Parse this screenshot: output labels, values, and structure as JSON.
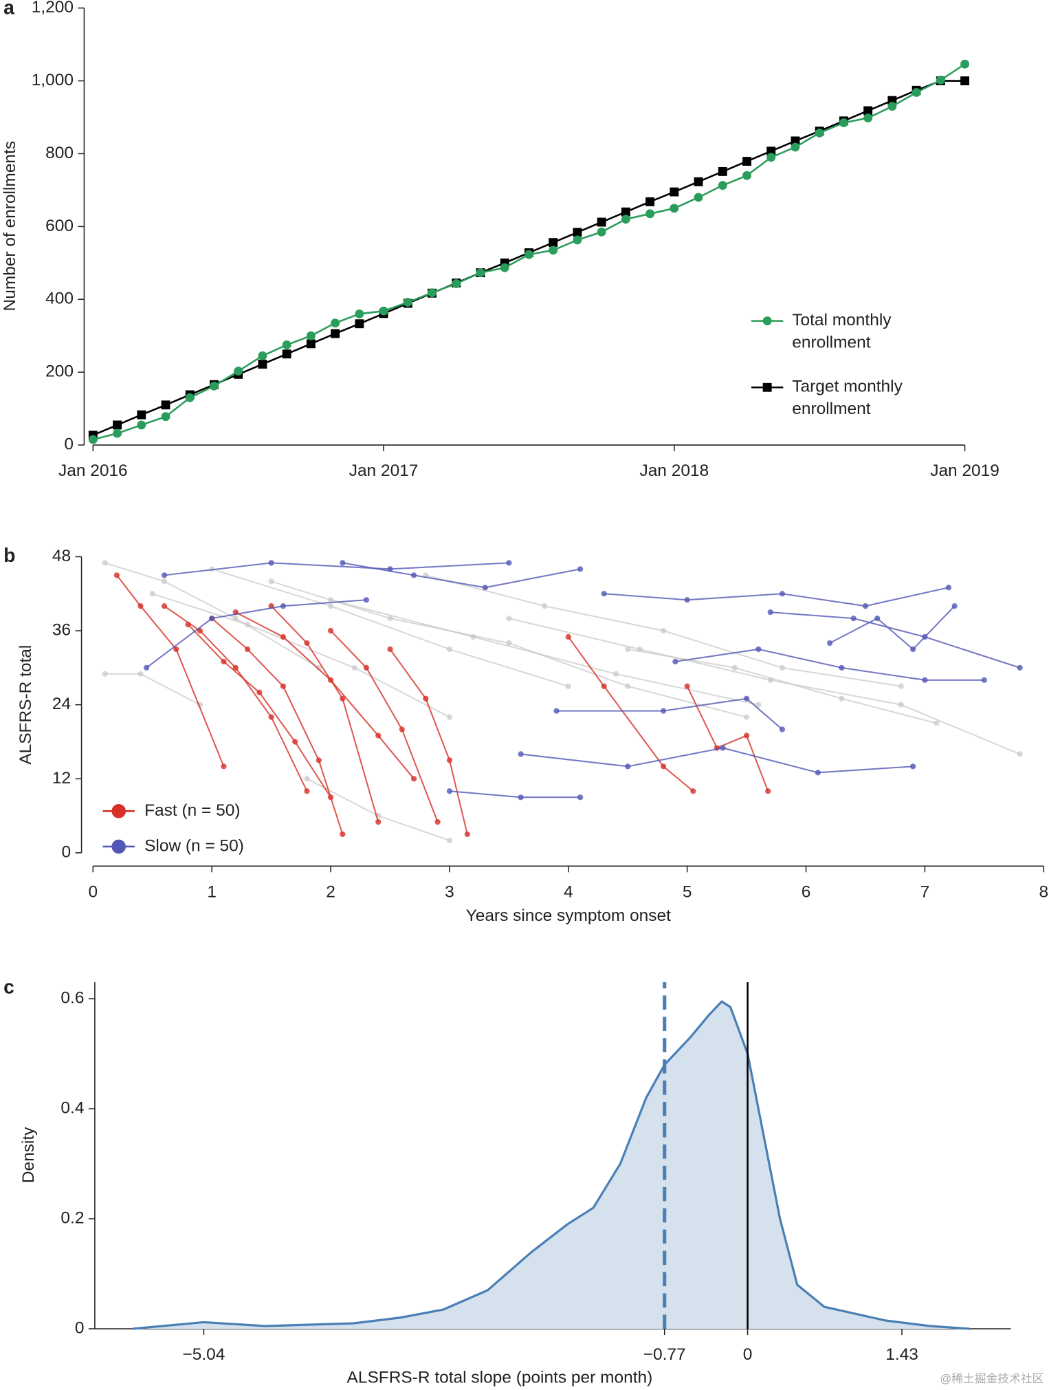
{
  "chart_data": [
    {
      "type": "line",
      "label": "a",
      "ylabel": "Number of enrollments",
      "legend": "lower right",
      "x": [
        "2016-01",
        "2016-02",
        "2016-03",
        "2016-04",
        "2016-05",
        "2016-06",
        "2016-07",
        "2016-08",
        "2016-09",
        "2016-10",
        "2016-11",
        "2016-12",
        "2017-01",
        "2017-02",
        "2017-03",
        "2017-04",
        "2017-05",
        "2017-06",
        "2017-07",
        "2017-08",
        "2017-09",
        "2017-10",
        "2017-11",
        "2017-12",
        "2018-01",
        "2018-02",
        "2018-03",
        "2018-04",
        "2018-05",
        "2018-06",
        "2018-07",
        "2018-08",
        "2018-09",
        "2018-10",
        "2018-11",
        "2018-12",
        "2019-01"
      ],
      "xlim": [
        "2016-01",
        "2019-01"
      ],
      "xticks": [
        {
          "value": "2016-01",
          "label": "Jan 2016"
        },
        {
          "value": "2017-01",
          "label": "Jan 2017"
        },
        {
          "value": "2018-01",
          "label": "Jan 2018"
        },
        {
          "value": "2019-01",
          "label": "Jan 2019"
        }
      ],
      "ylim": [
        0,
        1200
      ],
      "yticks": [
        0,
        200,
        400,
        600,
        800,
        {
          "value": 1000,
          "label": "1,000"
        },
        {
          "value": 1200,
          "label": "1,200"
        }
      ],
      "series": [
        {
          "name": "Total monthly enrollment",
          "color": "#2a9d5c",
          "marker": "circle",
          "values": [
            15,
            32,
            55,
            78,
            130,
            162,
            203,
            245,
            275,
            300,
            335,
            360,
            368,
            392,
            418,
            443,
            473,
            487,
            523,
            535,
            563,
            585,
            620,
            635,
            650,
            680,
            713,
            740,
            790,
            818,
            857,
            885,
            898,
            930,
            968,
            1002,
            1046
          ]
        },
        {
          "name": "Target monthly enrollment",
          "color": "#000000",
          "marker": "square",
          "values": [
            27,
            55,
            83,
            110,
            138,
            166,
            194,
            222,
            250,
            278,
            306,
            333,
            361,
            389,
            417,
            445,
            473,
            500,
            528,
            556,
            584,
            612,
            640,
            668,
            695,
            723,
            751,
            779,
            807,
            835,
            862,
            890,
            918,
            946,
            974,
            1000,
            1000
          ]
        }
      ]
    },
    {
      "type": "line",
      "label": "b",
      "ylabel": "ALSFRS-R total",
      "xlabel": "Years since symptom onset",
      "legend": "lower left",
      "xlim": [
        0,
        8
      ],
      "xticks": [
        0,
        1,
        2,
        3,
        4,
        5,
        6,
        7,
        8
      ],
      "ylim": [
        0,
        48
      ],
      "yticks": [
        0,
        12,
        24,
        36,
        48
      ],
      "series": [
        {
          "color": "#c8c8c8",
          "x": [
            0.1,
            0.6,
            1.2,
            1.9
          ],
          "values": [
            47,
            44,
            38,
            30
          ]
        },
        {
          "color": "#c8c8c8",
          "x": [
            0.5,
            1.3,
            2.2,
            3.0
          ],
          "values": [
            42,
            37,
            30,
            22
          ]
        },
        {
          "color": "#c8c8c8",
          "x": [
            1.0,
            2.0,
            3.0,
            4.0
          ],
          "values": [
            46,
            40,
            33,
            27
          ]
        },
        {
          "color": "#c8c8c8",
          "x": [
            1.5,
            2.5,
            3.5,
            4.5,
            5.5
          ],
          "values": [
            44,
            38,
            34,
            27,
            22
          ]
        },
        {
          "color": "#c8c8c8",
          "x": [
            2.0,
            3.2,
            4.4,
            5.6
          ],
          "values": [
            41,
            35,
            29,
            24
          ]
        },
        {
          "color": "#c8c8c8",
          "x": [
            2.8,
            3.8,
            4.8,
            5.8,
            6.8
          ],
          "values": [
            45,
            40,
            36,
            30,
            27
          ]
        },
        {
          "color": "#c8c8c8",
          "x": [
            3.5,
            4.6,
            5.7,
            6.8,
            7.8
          ],
          "values": [
            38,
            33,
            28,
            24,
            16
          ]
        },
        {
          "color": "#c8c8c8",
          "x": [
            1.8,
            2.4,
            3.0
          ],
          "values": [
            12,
            6,
            2
          ]
        },
        {
          "color": "#c8c8c8",
          "x": [
            0.1,
            0.4,
            0.9
          ],
          "values": [
            29,
            29,
            24
          ]
        },
        {
          "color": "#c8c8c8",
          "x": [
            4.5,
            5.4,
            6.3,
            7.1
          ],
          "values": [
            33,
            30,
            25,
            21
          ]
        },
        {
          "name": "Fast (n = 50)",
          "color": "#d73027",
          "x": [
            0.2,
            0.4,
            0.7,
            1.1
          ],
          "values": [
            45,
            40,
            33,
            14
          ]
        },
        {
          "color": "#d73027",
          "x": [
            0.6,
            0.9,
            1.2,
            1.5,
            1.8
          ],
          "values": [
            40,
            36,
            30,
            22,
            10
          ]
        },
        {
          "color": "#d73027",
          "x": [
            1.0,
            1.3,
            1.6,
            1.9,
            2.1
          ],
          "values": [
            38,
            33,
            27,
            15,
            3
          ]
        },
        {
          "color": "#d73027",
          "x": [
            1.5,
            1.8,
            2.1,
            2.4
          ],
          "values": [
            40,
            34,
            25,
            5
          ]
        },
        {
          "color": "#d73027",
          "x": [
            2.0,
            2.3,
            2.6,
            2.9
          ],
          "values": [
            36,
            30,
            20,
            5
          ]
        },
        {
          "color": "#d73027",
          "x": [
            2.5,
            2.8,
            3.0,
            3.15
          ],
          "values": [
            33,
            25,
            15,
            3
          ]
        },
        {
          "color": "#d73027",
          "x": [
            4.0,
            4.3,
            4.8,
            5.05
          ],
          "values": [
            35,
            27,
            14,
            10
          ]
        },
        {
          "color": "#d73027",
          "x": [
            5.0,
            5.25,
            5.5,
            5.68
          ],
          "values": [
            27,
            17,
            19,
            10
          ]
        },
        {
          "color": "#d73027",
          "x": [
            0.8,
            1.1,
            1.4,
            1.7,
            2.0
          ],
          "values": [
            37,
            31,
            26,
            18,
            9
          ]
        },
        {
          "color": "#d73027",
          "x": [
            1.2,
            1.6,
            2.0,
            2.4,
            2.7
          ],
          "values": [
            39,
            35,
            28,
            19,
            12
          ]
        },
        {
          "name": "Slow (n = 50)",
          "color": "#5257b5",
          "x": [
            0.45,
            1.0,
            1.6,
            2.3
          ],
          "values": [
            30,
            38,
            40,
            41
          ]
        },
        {
          "color": "#5257b5",
          "x": [
            0.6,
            1.5,
            2.5,
            3.5
          ],
          "values": [
            45,
            47,
            46,
            47
          ]
        },
        {
          "color": "#5257b5",
          "x": [
            2.1,
            2.7,
            3.3,
            4.1
          ],
          "values": [
            47,
            45,
            43,
            46
          ]
        },
        {
          "color": "#5257b5",
          "x": [
            3.0,
            3.6,
            4.1
          ],
          "values": [
            10,
            9,
            9
          ]
        },
        {
          "color": "#5257b5",
          "x": [
            3.6,
            4.5,
            5.3,
            6.1,
            6.9
          ],
          "values": [
            16,
            14,
            17,
            13,
            14
          ]
        },
        {
          "color": "#5257b5",
          "x": [
            4.3,
            5.0,
            5.8,
            6.5,
            7.2
          ],
          "values": [
            42,
            41,
            42,
            40,
            43
          ]
        },
        {
          "color": "#5257b5",
          "x": [
            4.9,
            5.6,
            6.3,
            7.0,
            7.5
          ],
          "values": [
            31,
            33,
            30,
            28,
            28
          ]
        },
        {
          "color": "#5257b5",
          "x": [
            3.9,
            4.8,
            5.5,
            5.8
          ],
          "values": [
            23,
            23,
            25,
            20
          ]
        },
        {
          "color": "#5257b5",
          "x": [
            5.7,
            6.4,
            7.0,
            7.8
          ],
          "values": [
            39,
            38,
            35,
            30
          ]
        },
        {
          "color": "#5257b5",
          "x": [
            6.2,
            6.6,
            6.9,
            7.25
          ],
          "values": [
            34,
            38,
            33,
            40
          ]
        }
      ]
    },
    {
      "type": "area",
      "label": "c",
      "ylabel": "Density",
      "xlabel": "ALSFRS-R total slope (points per month)",
      "xlim": [
        -6.05,
        2.44
      ],
      "xticks": [
        {
          "value": -5.04,
          "label": "−5.04"
        },
        {
          "value": -0.77,
          "label": "−0.77"
        },
        0,
        1.43
      ],
      "ylim": [
        0,
        0.63
      ],
      "yticks": [
        0,
        0.2,
        0.4,
        0.6
      ],
      "color": "#4a7fb5",
      "fill": "#d5e2ee",
      "x": [
        -5.7,
        -5.04,
        -4.47,
        -3.65,
        -3.23,
        -2.82,
        -2.41,
        -2.0,
        -1.67,
        -1.43,
        -1.18,
        -0.94,
        -0.77,
        -0.53,
        -0.36,
        -0.24,
        -0.16,
        0,
        0.13,
        0.3,
        0.46,
        0.71,
        1.28,
        1.69,
        2.06
      ],
      "values": [
        0,
        0.012,
        0.005,
        0.01,
        0.02,
        0.035,
        0.07,
        0.14,
        0.19,
        0.22,
        0.3,
        0.42,
        0.48,
        0.53,
        0.57,
        0.595,
        0.585,
        0.5,
        0.37,
        0.2,
        0.08,
        0.04,
        0.015,
        0.005,
        0
      ],
      "vlines": [
        {
          "x": -0.77,
          "color": "#4a7fb5",
          "style": "dashed"
        },
        {
          "x": 0,
          "color": "#000000",
          "style": "solid"
        }
      ]
    }
  ],
  "watermark": "@稀土掘金技术社区"
}
